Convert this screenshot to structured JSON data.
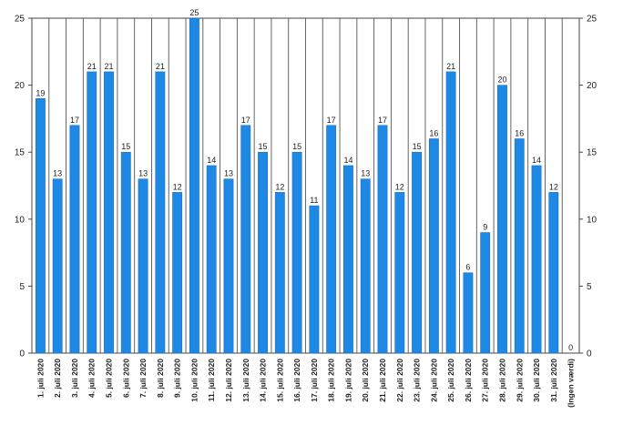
{
  "chart_data": {
    "type": "bar",
    "categories": [
      "1. juli 2020",
      "2. juli 2020",
      "3. juli 2020",
      "4. juli 2020",
      "5. juli 2020",
      "6. juli 2020",
      "7. juli 2020",
      "8. juli 2020",
      "9. juli 2020",
      "10. juli 2020",
      "11. juli 2020",
      "12. juli 2020",
      "13. juli 2020",
      "14. juli 2020",
      "15. juli 2020",
      "16. juli 2020",
      "17. juli 2020",
      "18. juli 2020",
      "19. juli 2020",
      "20. juli 2020",
      "21. juli 2020",
      "22. juli 2020",
      "23. juli 2020",
      "24. juli 2020",
      "25. juli 2020",
      "26. juli 2020",
      "27. juli 2020",
      "28. juli 2020",
      "29. juli 2020",
      "30. juli 2020",
      "31. juli 2020",
      "(Ingen værdi)"
    ],
    "values": [
      19,
      13,
      17,
      21,
      21,
      15,
      13,
      21,
      12,
      25,
      14,
      13,
      17,
      15,
      12,
      15,
      11,
      17,
      14,
      13,
      17,
      12,
      15,
      16,
      21,
      6,
      9,
      20,
      16,
      14,
      12,
      0
    ],
    "ylim": [
      0,
      25
    ],
    "yticks": [
      0,
      5,
      10,
      15,
      20,
      25
    ],
    "y_tick_labels_right": true,
    "data_labels": true,
    "grid": "vertical",
    "bar_color": "#1e88e5",
    "title": "",
    "xlabel": "",
    "ylabel": ""
  }
}
